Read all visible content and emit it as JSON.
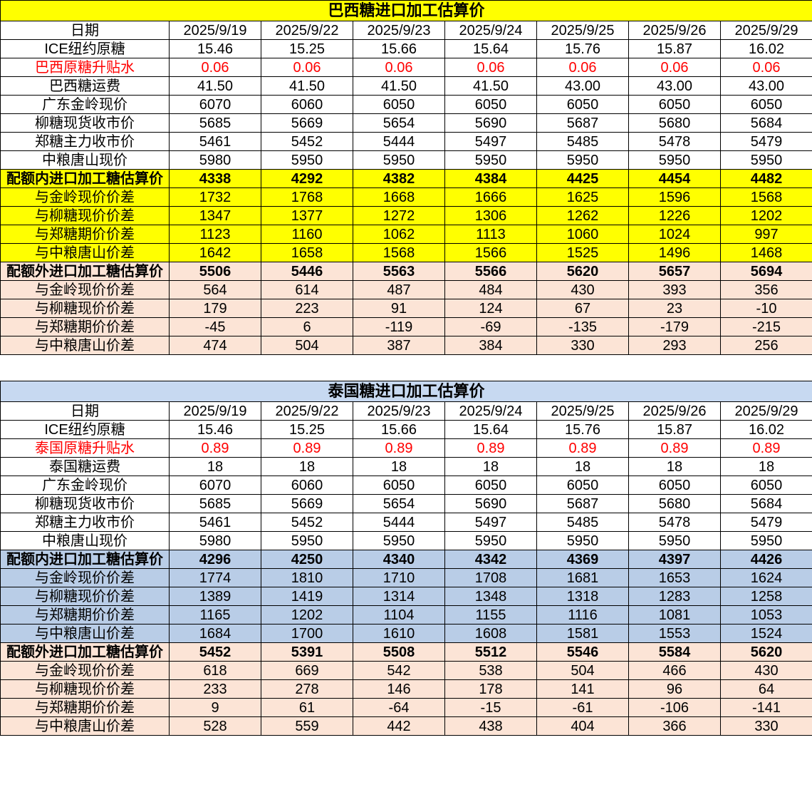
{
  "colors": {
    "page_bg": "#FFFFFF",
    "text": "#000000",
    "border": "#000000",
    "red_text": "#FF0000",
    "yellow": "#FFFF00",
    "peach": "#FCE4D6",
    "blue_title": "#C7D9F1",
    "blue_row": "#B9CDE7"
  },
  "dates": [
    "2025/9/19",
    "2025/9/22",
    "2025/9/23",
    "2025/9/24",
    "2025/9/25",
    "2025/9/26",
    "2025/9/29"
  ],
  "sections": [
    {
      "id": "brazil",
      "title": "巴西糖进口加工估算价",
      "theme": "yellow",
      "date_label": "日期",
      "rows": [
        {
          "label": "ICE纽约原糖",
          "values": [
            "15.46",
            "15.25",
            "15.66",
            "15.64",
            "15.76",
            "15.87",
            "16.02"
          ]
        },
        {
          "label": "巴西原糖升贴水",
          "values": [
            "0.06",
            "0.06",
            "0.06",
            "0.06",
            "0.06",
            "0.06",
            "0.06"
          ],
          "red": true
        },
        {
          "label": "巴西糖运费",
          "values": [
            "41.50",
            "41.50",
            "41.50",
            "41.50",
            "43.00",
            "43.00",
            "43.00"
          ]
        },
        {
          "label": "广东金岭现价",
          "values": [
            "6070",
            "6060",
            "6050",
            "6050",
            "6050",
            "6050",
            "6050"
          ]
        },
        {
          "label": "柳糖现货收市价",
          "values": [
            "5685",
            "5669",
            "5654",
            "5690",
            "5687",
            "5680",
            "5684"
          ]
        },
        {
          "label": "郑糖主力收市价",
          "values": [
            "5461",
            "5452",
            "5444",
            "5497",
            "5485",
            "5478",
            "5479"
          ]
        },
        {
          "label": "中粮唐山现价",
          "values": [
            "5980",
            "5950",
            "5950",
            "5950",
            "5950",
            "5950",
            "5950"
          ]
        },
        {
          "label": "配额内进口加工糖估算价",
          "values": [
            "4338",
            "4292",
            "4382",
            "4384",
            "4425",
            "4454",
            "4482"
          ],
          "bg": "yellow",
          "bold": true
        },
        {
          "label": "与金岭现价价差",
          "values": [
            "1732",
            "1768",
            "1668",
            "1666",
            "1625",
            "1596",
            "1568"
          ],
          "bg": "yellow"
        },
        {
          "label": "与柳糖现价价差",
          "values": [
            "1347",
            "1377",
            "1272",
            "1306",
            "1262",
            "1226",
            "1202"
          ],
          "bg": "yellow"
        },
        {
          "label": "与郑糖期价价差",
          "values": [
            "1123",
            "1160",
            "1062",
            "1113",
            "1060",
            "1024",
            "997"
          ],
          "bg": "yellow"
        },
        {
          "label": "与中粮唐山价差",
          "values": [
            "1642",
            "1658",
            "1568",
            "1566",
            "1525",
            "1496",
            "1468"
          ],
          "bg": "yellow"
        },
        {
          "label": "配额外进口加工糖估算价",
          "values": [
            "5506",
            "5446",
            "5563",
            "5566",
            "5620",
            "5657",
            "5694"
          ],
          "bg": "peach",
          "bold": true
        },
        {
          "label": "与金岭现价价差",
          "values": [
            "564",
            "614",
            "487",
            "484",
            "430",
            "393",
            "356"
          ],
          "bg": "peach"
        },
        {
          "label": "与柳糖现价价差",
          "values": [
            "179",
            "223",
            "91",
            "124",
            "67",
            "23",
            "-10"
          ],
          "bg": "peach"
        },
        {
          "label": "与郑糖期价价差",
          "values": [
            "-45",
            "6",
            "-119",
            "-69",
            "-135",
            "-179",
            "-215"
          ],
          "bg": "peach"
        },
        {
          "label": "与中粮唐山价差",
          "values": [
            "474",
            "504",
            "387",
            "384",
            "330",
            "293",
            "256"
          ],
          "bg": "peach"
        }
      ]
    },
    {
      "id": "thailand",
      "title": "泰国糖进口加工估算价",
      "theme": "blue",
      "date_label": "日期",
      "rows": [
        {
          "label": "ICE纽约原糖",
          "values": [
            "15.46",
            "15.25",
            "15.66",
            "15.64",
            "15.76",
            "15.87",
            "16.02"
          ]
        },
        {
          "label": "泰国原糖升贴水",
          "values": [
            "0.89",
            "0.89",
            "0.89",
            "0.89",
            "0.89",
            "0.89",
            "0.89"
          ],
          "red": true
        },
        {
          "label": "泰国糖运费",
          "values": [
            "18",
            "18",
            "18",
            "18",
            "18",
            "18",
            "18"
          ]
        },
        {
          "label": "广东金岭现价",
          "values": [
            "6070",
            "6060",
            "6050",
            "6050",
            "6050",
            "6050",
            "6050"
          ]
        },
        {
          "label": "柳糖现货收市价",
          "values": [
            "5685",
            "5669",
            "5654",
            "5690",
            "5687",
            "5680",
            "5684"
          ]
        },
        {
          "label": "郑糖主力收市价",
          "values": [
            "5461",
            "5452",
            "5444",
            "5497",
            "5485",
            "5478",
            "5479"
          ]
        },
        {
          "label": "中粮唐山现价",
          "values": [
            "5980",
            "5950",
            "5950",
            "5950",
            "5950",
            "5950",
            "5950"
          ]
        },
        {
          "label": "配额内进口加工糖估算价",
          "values": [
            "4296",
            "4250",
            "4340",
            "4342",
            "4369",
            "4397",
            "4426"
          ],
          "bg": "blue",
          "bold": true
        },
        {
          "label": "与金岭现价价差",
          "values": [
            "1774",
            "1810",
            "1710",
            "1708",
            "1681",
            "1653",
            "1624"
          ],
          "bg": "blue"
        },
        {
          "label": "与柳糖现价价差",
          "values": [
            "1389",
            "1419",
            "1314",
            "1348",
            "1318",
            "1283",
            "1258"
          ],
          "bg": "blue"
        },
        {
          "label": "与郑糖期价价差",
          "values": [
            "1165",
            "1202",
            "1104",
            "1155",
            "1116",
            "1081",
            "1053"
          ],
          "bg": "blue"
        },
        {
          "label": "与中粮唐山价差",
          "values": [
            "1684",
            "1700",
            "1610",
            "1608",
            "1581",
            "1553",
            "1524"
          ],
          "bg": "blue"
        },
        {
          "label": "配额外进口加工糖估算价",
          "values": [
            "5452",
            "5391",
            "5508",
            "5512",
            "5546",
            "5584",
            "5620"
          ],
          "bg": "peach",
          "bold": true
        },
        {
          "label": "与金岭现价价差",
          "values": [
            "618",
            "669",
            "542",
            "538",
            "504",
            "466",
            "430"
          ],
          "bg": "peach"
        },
        {
          "label": "与柳糖现价价差",
          "values": [
            "233",
            "278",
            "146",
            "178",
            "141",
            "96",
            "64"
          ],
          "bg": "peach"
        },
        {
          "label": "与郑糖期价价差",
          "values": [
            "9",
            "61",
            "-64",
            "-15",
            "-61",
            "-106",
            "-141"
          ],
          "bg": "peach"
        },
        {
          "label": "与中粮唐山价差",
          "values": [
            "528",
            "559",
            "442",
            "438",
            "404",
            "366",
            "330"
          ],
          "bg": "peach"
        }
      ]
    }
  ],
  "layout": {
    "label_col_width": 237,
    "data_col_width": 129
  }
}
